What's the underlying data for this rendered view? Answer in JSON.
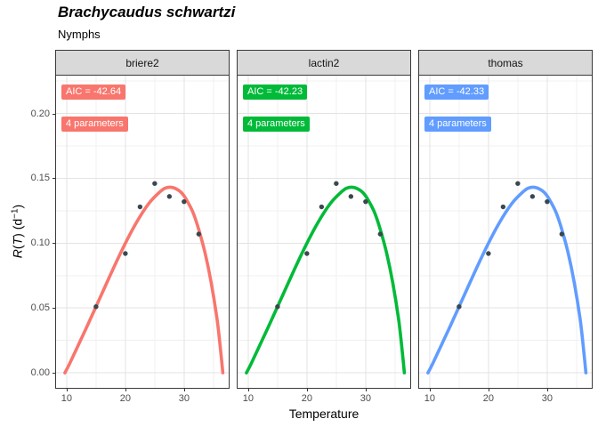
{
  "chart_data": {
    "type": "line",
    "title": "Brachycaudus schwartzi",
    "subtitle": "Nymphs",
    "x_axis": {
      "label": "Temperature",
      "ticks": [
        10,
        20,
        30
      ],
      "minor_ticks": [
        15,
        25,
        35
      ],
      "domain": [
        8.2,
        37.6
      ]
    },
    "y_axis": {
      "label": "R(T) (d−1)",
      "label_parts": {
        "r": "R",
        "open": "(",
        "t": "T",
        "mid": ") (d",
        "sup": "−1",
        "close": ")"
      },
      "ticks": [
        {
          "label": "0.00",
          "value": 0.0
        },
        {
          "label": "0.05",
          "value": 0.05
        },
        {
          "label": "0.10",
          "value": 0.1
        },
        {
          "label": "0.15",
          "value": 0.15
        },
        {
          "label": "0.20",
          "value": 0.2
        }
      ],
      "minor_ticks": [
        0.025,
        0.075,
        0.125,
        0.175,
        0.225
      ],
      "domain": [
        -0.0116,
        0.2292
      ]
    },
    "points": [
      [
        15,
        0.051
      ],
      [
        20,
        0.092
      ],
      [
        22.5,
        0.128
      ],
      [
        25,
        0.146
      ],
      [
        27.5,
        0.136
      ],
      [
        30,
        0.132
      ],
      [
        32.5,
        0.107
      ]
    ],
    "curve": [
      [
        9.7,
        0.0
      ],
      [
        10.5,
        0.007
      ],
      [
        11.9,
        0.0205
      ],
      [
        13.9,
        0.04
      ],
      [
        15.9,
        0.06
      ],
      [
        17.9,
        0.08
      ],
      [
        19.9,
        0.099
      ],
      [
        21.9,
        0.116
      ],
      [
        23.9,
        0.13
      ],
      [
        25.4,
        0.1375
      ],
      [
        26.6,
        0.142
      ],
      [
        27.6,
        0.1432
      ],
      [
        28.6,
        0.142
      ],
      [
        29.6,
        0.1387
      ],
      [
        30.6,
        0.132
      ],
      [
        31.6,
        0.1228
      ],
      [
        32.6,
        0.109
      ],
      [
        33.6,
        0.092
      ],
      [
        34.6,
        0.07
      ],
      [
        35.6,
        0.042
      ],
      [
        36.2,
        0.018
      ],
      [
        36.6,
        0.0
      ]
    ],
    "facets": [
      {
        "name": "briere2",
        "color": "#F8766D",
        "aic_label": "AIC = -42.64",
        "params_label": "4 parameters"
      },
      {
        "name": "lactin2",
        "color": "#00BA38",
        "aic_label": "AIC = -42.23",
        "params_label": "4 parameters"
      },
      {
        "name": "thomas",
        "color": "#619CFF",
        "aic_label": "AIC = -42.33",
        "params_label": "4 parameters"
      }
    ],
    "point_color": "#3A474E",
    "grid": {
      "major": "#E3E3E3",
      "minor": "#F0F0F0"
    },
    "strip_bg": "#D9D9D9",
    "panel_border": "#3A3A3A"
  }
}
